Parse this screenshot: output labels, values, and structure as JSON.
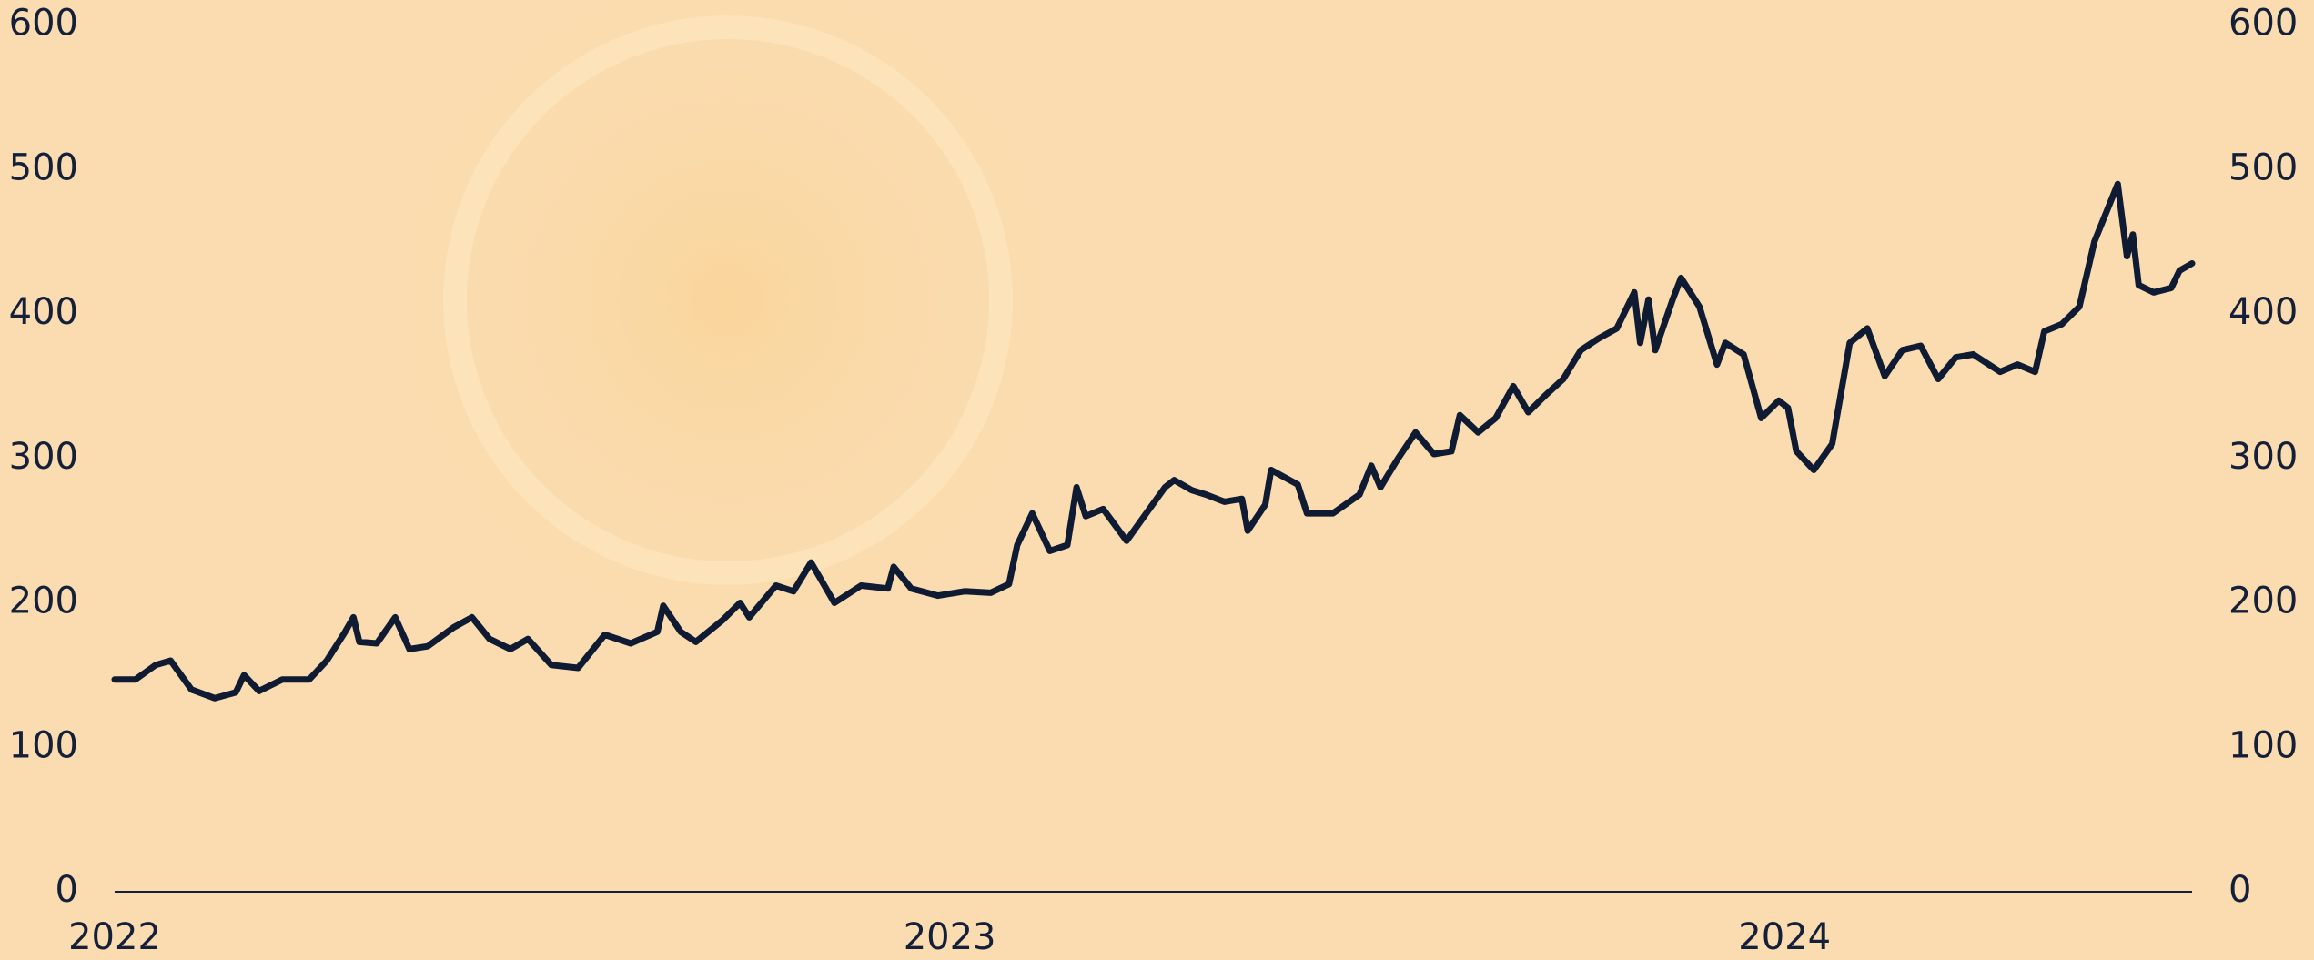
{
  "chart_data": {
    "type": "line",
    "x": [
      2022.0,
      2022.025,
      2022.049,
      2022.067,
      2022.092,
      2022.12,
      2022.145,
      2022.155,
      2022.173,
      2022.201,
      2022.233,
      2022.254,
      2022.276,
      2022.286,
      2022.293,
      2022.314,
      2022.336,
      2022.353,
      2022.375,
      2022.406,
      2022.428,
      2022.449,
      2022.474,
      2022.495,
      2022.523,
      2022.555,
      2022.587,
      2022.618,
      2022.65,
      2022.657,
      2022.678,
      2022.696,
      2022.728,
      2022.749,
      2022.76,
      2022.792,
      2022.813,
      2022.834,
      2022.862,
      2022.894,
      2022.926,
      2022.933,
      2022.954,
      2022.986,
      2023.018,
      2023.049,
      2023.071,
      2023.081,
      2023.099,
      2023.12,
      2023.141,
      2023.152,
      2023.163,
      2023.184,
      2023.212,
      2023.233,
      2023.258,
      2023.269,
      2023.29,
      2023.307,
      2023.329,
      2023.35,
      2023.357,
      2023.378,
      2023.385,
      2023.417,
      2023.428,
      2023.459,
      2023.491,
      2023.505,
      2023.516,
      2023.537,
      2023.558,
      2023.58,
      2023.601,
      2023.611,
      2023.633,
      2023.654,
      2023.675,
      2023.693,
      2023.714,
      2023.735,
      2023.756,
      2023.777,
      2023.799,
      2023.82,
      2023.827,
      2023.837,
      2023.845,
      2023.866,
      2023.876,
      2023.898,
      2023.919,
      2023.929,
      2023.951,
      2023.972,
      2023.993,
      2024.004,
      2024.014,
      2024.035,
      2024.057,
      2024.078,
      2024.099,
      2024.12,
      2024.141,
      2024.163,
      2024.184,
      2024.205,
      2024.226,
      2024.258,
      2024.279,
      2024.3,
      2024.311,
      2024.332,
      2024.353,
      2024.371,
      2024.392,
      2024.399,
      2024.41,
      2024.417,
      2024.424,
      2024.442,
      2024.463,
      2024.473,
      2024.488
    ],
    "values": [
      147,
      147,
      157,
      160,
      140,
      134,
      138,
      150,
      139,
      147,
      147,
      160,
      180,
      190,
      173,
      172,
      190,
      168,
      170,
      183,
      190,
      175,
      168,
      175,
      157,
      155,
      178,
      172,
      180,
      198,
      180,
      173,
      188,
      200,
      190,
      212,
      208,
      228,
      200,
      212,
      210,
      225,
      210,
      205,
      208,
      207,
      213,
      240,
      262,
      236,
      240,
      280,
      260,
      265,
      243,
      260,
      280,
      285,
      278,
      275,
      270,
      272,
      250,
      268,
      292,
      282,
      262,
      262,
      275,
      295,
      280,
      300,
      318,
      303,
      305,
      330,
      318,
      328,
      350,
      332,
      344,
      355,
      375,
      383,
      390,
      415,
      380,
      410,
      375,
      410,
      425,
      405,
      365,
      380,
      372,
      328,
      340,
      335,
      305,
      292,
      310,
      380,
      390,
      357,
      375,
      378,
      355,
      370,
      372,
      360,
      365,
      360,
      388,
      393,
      405,
      450,
      480,
      490,
      440,
      455,
      420,
      415,
      418,
      430,
      435
    ],
    "color": "#0f1a33",
    "xlim": [
      2022,
      2024.488
    ],
    "xticks": [
      2022,
      2023,
      2024
    ],
    "ylim": [
      0,
      600
    ],
    "yticks": [
      0,
      100,
      200,
      300,
      400,
      500,
      600
    ],
    "y2lim": [
      0,
      600
    ],
    "y2ticks": [
      0,
      100,
      200,
      300,
      400,
      500,
      600
    ],
    "grid": false
  }
}
